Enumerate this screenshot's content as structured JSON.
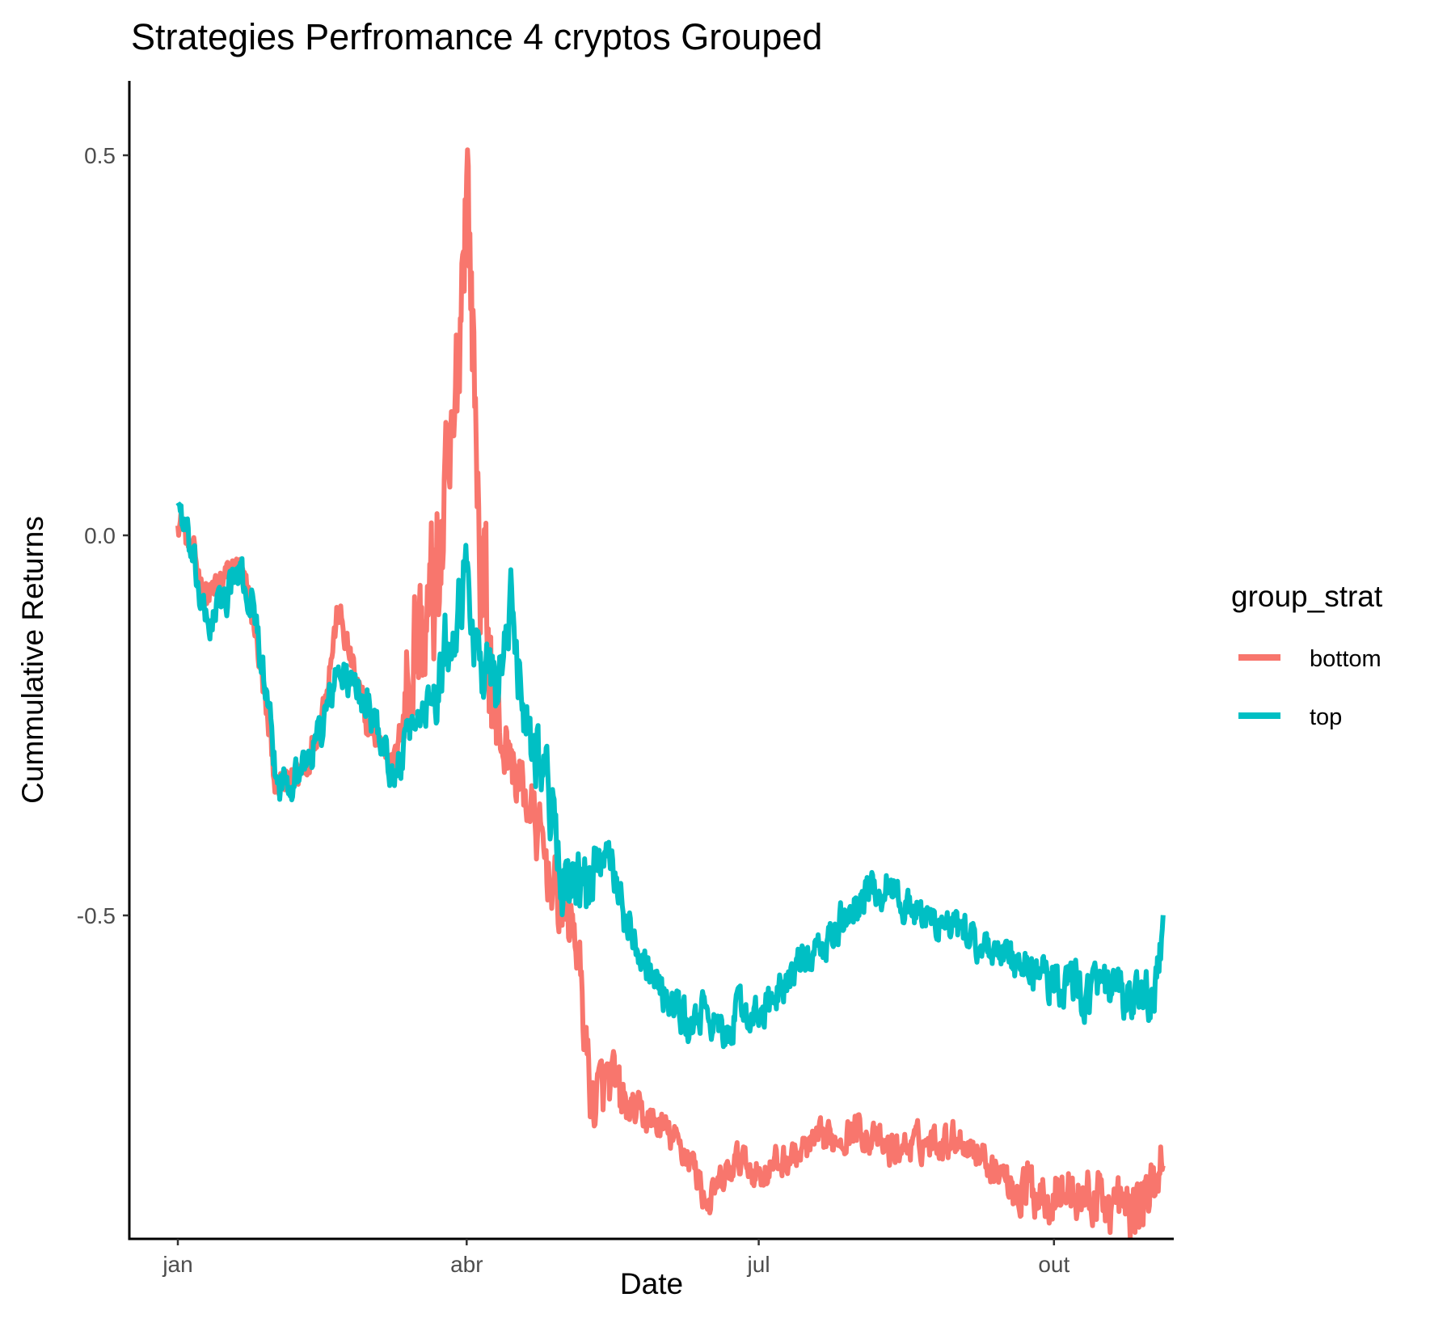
{
  "chart_data": {
    "type": "line",
    "title": "Strategies Perfromance 4 cryptos Grouped",
    "xlabel": "Date",
    "ylabel": "Cummulative Returns",
    "x_ticks": [
      "jan",
      "abr",
      "jul",
      "out"
    ],
    "y_ticks": [
      "0.5",
      "0.0",
      "-0.5"
    ],
    "ylim": [
      -0.93,
      0.6
    ],
    "grid": false,
    "legend": {
      "title": "group_strat",
      "position": "right",
      "entries": [
        "bottom",
        "top"
      ]
    },
    "x_dates": [
      "2018-01-01",
      "2018-01-10",
      "2018-01-20",
      "2018-01-25",
      "2018-02-01",
      "2018-02-10",
      "2018-02-15",
      "2018-02-20",
      "2018-03-01",
      "2018-03-10",
      "2018-03-15",
      "2018-03-20",
      "2018-03-25",
      "2018-03-28",
      "2018-04-01",
      "2018-04-05",
      "2018-04-10",
      "2018-04-15",
      "2018-04-20",
      "2018-04-25",
      "2018-05-01",
      "2018-05-05",
      "2018-05-10",
      "2018-05-15",
      "2018-05-20",
      "2018-06-01",
      "2018-06-10",
      "2018-06-15",
      "2018-06-20",
      "2018-06-25",
      "2018-07-01",
      "2018-07-10",
      "2018-07-20",
      "2018-08-01",
      "2018-08-10",
      "2018-08-20",
      "2018-09-01",
      "2018-09-10",
      "2018-09-20",
      "2018-10-01",
      "2018-10-10",
      "2018-10-20",
      "2018-10-25",
      "2018-11-01",
      "2018-11-04"
    ],
    "series": [
      {
        "name": "bottom",
        "color": "#F8766D",
        "values": [
          0.03,
          -0.08,
          -0.04,
          -0.12,
          -0.34,
          -0.3,
          -0.23,
          -0.1,
          -0.25,
          -0.3,
          -0.15,
          -0.12,
          0.0,
          0.1,
          0.5,
          0.0,
          -0.25,
          -0.3,
          -0.35,
          -0.42,
          -0.5,
          -0.52,
          -0.75,
          -0.72,
          -0.75,
          -0.78,
          -0.82,
          -0.88,
          -0.85,
          -0.82,
          -0.84,
          -0.82,
          -0.8,
          -0.78,
          -0.81,
          -0.8,
          -0.79,
          -0.82,
          -0.86,
          -0.86,
          -0.87,
          -0.88,
          -0.89,
          -0.86,
          -0.8
        ]
      },
      {
        "name": "top",
        "color": "#00BFC4",
        "values": [
          0.05,
          -0.12,
          -0.05,
          -0.1,
          -0.33,
          -0.3,
          -0.25,
          -0.18,
          -0.22,
          -0.32,
          -0.25,
          -0.22,
          -0.15,
          -0.1,
          -0.05,
          -0.17,
          -0.2,
          -0.1,
          -0.25,
          -0.3,
          -0.45,
          -0.48,
          -0.45,
          -0.4,
          -0.5,
          -0.6,
          -0.65,
          -0.62,
          -0.67,
          -0.62,
          -0.64,
          -0.58,
          -0.55,
          -0.48,
          -0.46,
          -0.5,
          -0.52,
          -0.54,
          -0.57,
          -0.58,
          -0.6,
          -0.6,
          -0.62,
          -0.6,
          -0.53
        ]
      }
    ]
  }
}
